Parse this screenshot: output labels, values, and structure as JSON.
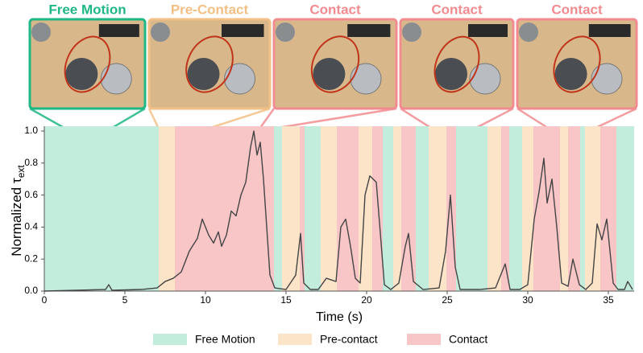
{
  "chart_data": {
    "type": "line",
    "annotations": [
      {
        "label": "Free Motion",
        "color": "#1fb784"
      },
      {
        "label": "Pre-Contact",
        "color": "#f2bf85"
      },
      {
        "label": "Contact",
        "color": "#f28b8f"
      },
      {
        "label": "Contact",
        "color": "#f28b8f"
      },
      {
        "label": "Contact",
        "color": "#f28b8f"
      }
    ],
    "xlabel": "Time (s)",
    "ylabel": "Normalized τ",
    "ylabel_sub": "ext",
    "xlim": [
      0,
      36.6
    ],
    "ylim": [
      0,
      1.03
    ],
    "xticks": [
      0,
      5,
      10,
      15,
      20,
      25,
      30,
      35
    ],
    "yticks": [
      {
        "value": 0,
        "label": "0.0"
      },
      0.2,
      0.4,
      0.6,
      0.8,
      {
        "value": 1,
        "label": "1.0"
      }
    ],
    "regions": [
      {
        "name": "Free Motion",
        "color": "#c2eddc"
      },
      {
        "name": "Pre-contact",
        "color": "#fbe4c8"
      },
      {
        "name": "Contact",
        "color": "#f9c6c8"
      }
    ],
    "spans": [
      {
        "start": 0,
        "end": 7.1,
        "kind": 0
      },
      {
        "start": 7.1,
        "end": 8.1,
        "kind": 1
      },
      {
        "start": 8.1,
        "end": 14.25,
        "kind": 2
      },
      {
        "start": 14.25,
        "end": 14.75,
        "kind": 0
      },
      {
        "start": 14.75,
        "end": 15.85,
        "kind": 1
      },
      {
        "start": 15.85,
        "end": 16.15,
        "kind": 2
      },
      {
        "start": 16.15,
        "end": 17.15,
        "kind": 0
      },
      {
        "start": 17.15,
        "end": 18.15,
        "kind": 1
      },
      {
        "start": 18.15,
        "end": 19.5,
        "kind": 2
      },
      {
        "start": 19.5,
        "end": 20.35,
        "kind": 1
      },
      {
        "start": 20.35,
        "end": 21.0,
        "kind": 2
      },
      {
        "start": 21.0,
        "end": 21.65,
        "kind": 0
      },
      {
        "start": 21.65,
        "end": 22.15,
        "kind": 1
      },
      {
        "start": 22.15,
        "end": 23.05,
        "kind": 2
      },
      {
        "start": 23.05,
        "end": 23.85,
        "kind": 0
      },
      {
        "start": 23.85,
        "end": 24.95,
        "kind": 1
      },
      {
        "start": 24.95,
        "end": 25.55,
        "kind": 2
      },
      {
        "start": 25.55,
        "end": 27.5,
        "kind": 0
      },
      {
        "start": 27.5,
        "end": 28.35,
        "kind": 1
      },
      {
        "start": 28.35,
        "end": 28.85,
        "kind": 2
      },
      {
        "start": 28.85,
        "end": 29.65,
        "kind": 0
      },
      {
        "start": 29.65,
        "end": 30.35,
        "kind": 1
      },
      {
        "start": 30.35,
        "end": 32.0,
        "kind": 2
      },
      {
        "start": 32.0,
        "end": 32.5,
        "kind": 1
      },
      {
        "start": 32.5,
        "end": 33.25,
        "kind": 2
      },
      {
        "start": 33.25,
        "end": 33.55,
        "kind": 0
      },
      {
        "start": 33.55,
        "end": 34.5,
        "kind": 1
      },
      {
        "start": 34.5,
        "end": 35.5,
        "kind": 2
      },
      {
        "start": 35.5,
        "end": 36.6,
        "kind": 0
      }
    ],
    "series": [
      {
        "color": "#444444",
        "x": [
          0,
          2,
          3.8,
          4,
          4.2,
          6,
          7,
          7.5,
          8,
          8.5,
          9,
          9.5,
          9.8,
          10.2,
          10.5,
          10.8,
          11,
          11.3,
          11.6,
          11.9,
          12.2,
          12.5,
          12.8,
          13,
          13.2,
          13.4,
          13.6,
          13.8,
          14,
          14.3,
          15,
          15.6,
          15.9,
          16.1,
          16.5,
          17,
          17.5,
          18.1,
          18.4,
          18.7,
          19,
          19.3,
          19.6,
          19.9,
          20.2,
          20.6,
          20.9,
          21.1,
          21.5,
          22,
          22.4,
          22.6,
          22.9,
          23.5,
          24.5,
          24.9,
          25.2,
          25.5,
          25.8,
          27,
          28,
          28.6,
          28.9,
          29.5,
          30,
          30.4,
          30.7,
          31,
          31.2,
          31.5,
          31.8,
          32.1,
          32.5,
          32.8,
          33,
          33.2,
          33.6,
          34,
          34.3,
          34.6,
          34.9,
          35.3,
          35.6,
          36,
          36.2,
          36.5
        ],
        "values": [
          0,
          0.005,
          0.01,
          0.04,
          0.005,
          0.01,
          0.02,
          0.06,
          0.08,
          0.12,
          0.25,
          0.33,
          0.45,
          0.35,
          0.3,
          0.37,
          0.28,
          0.35,
          0.5,
          0.47,
          0.6,
          0.68,
          0.9,
          1.0,
          0.85,
          0.93,
          0.7,
          0.4,
          0.1,
          0.02,
          0.01,
          0.1,
          0.36,
          0.05,
          0.01,
          0.01,
          0.08,
          0.06,
          0.4,
          0.45,
          0.28,
          0.08,
          0.05,
          0.6,
          0.72,
          0.68,
          0.3,
          0.04,
          0.01,
          0.05,
          0.28,
          0.36,
          0.06,
          0.01,
          0.02,
          0.25,
          0.6,
          0.15,
          0.01,
          0.01,
          0.02,
          0.17,
          0.01,
          0.01,
          0.04,
          0.45,
          0.62,
          0.83,
          0.55,
          0.7,
          0.4,
          0.05,
          0.03,
          0.2,
          0.12,
          0.04,
          0.01,
          0.05,
          0.42,
          0.32,
          0.45,
          0.05,
          0.01,
          0.01,
          0.06,
          0.01
        ]
      }
    ]
  }
}
